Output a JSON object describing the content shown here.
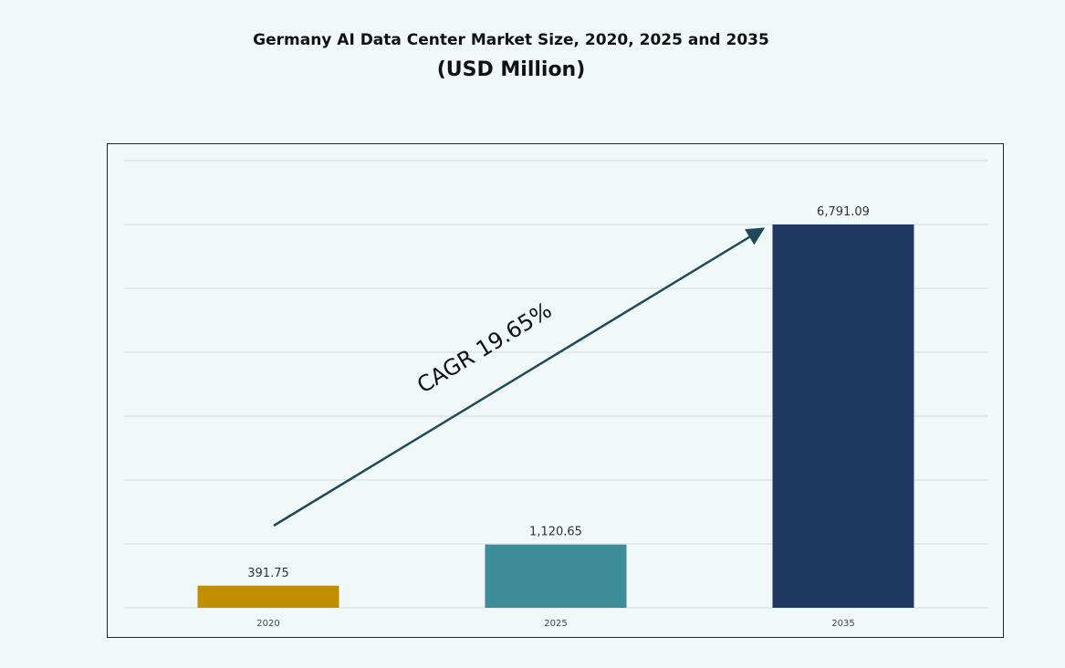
{
  "chart_data": {
    "type": "bar",
    "title": "Germany AI Data Center Market Size, 2020, 2025 and 2035",
    "subtitle": "(USD Million)",
    "categories": [
      "2020",
      "2025",
      "2035"
    ],
    "values": [
      391.75,
      1120.65,
      6791.09
    ],
    "value_labels": [
      "391.75",
      "1,120.65",
      "6,791.09"
    ],
    "colors": [
      "#c08f00",
      "#3c8d97",
      "#1f3862"
    ],
    "annotation": "CAGR 19.65%",
    "annotation_color": "#1f4a5a",
    "grid": true,
    "y_axis_labels_shown": false,
    "xlabel": "",
    "ylabel": ""
  }
}
